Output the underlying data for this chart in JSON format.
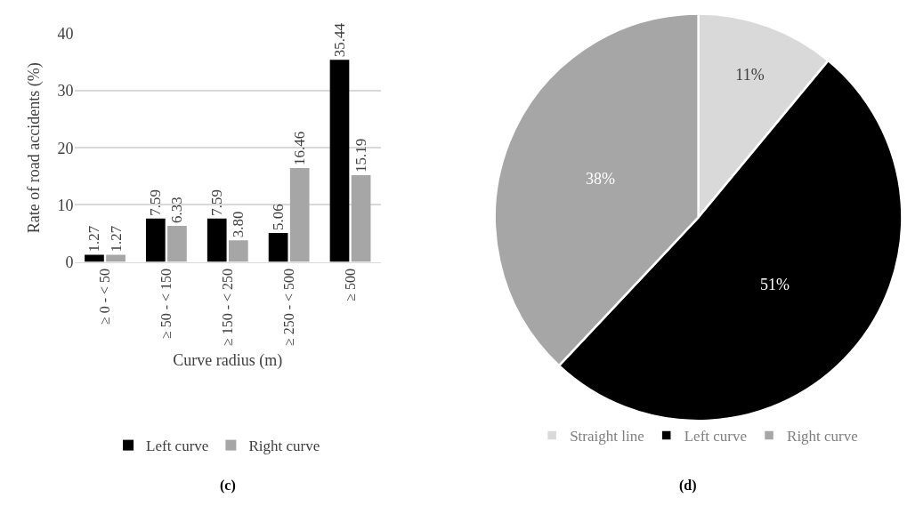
{
  "chart_data": [
    {
      "type": "bar",
      "xlabel": "Curve radius (m)",
      "ylabel": "Rate of road accidents (%)",
      "annotations": [
        "(c)"
      ],
      "categories": [
        "≥ 0 - < 50",
        "≥ 50 - < 150",
        "≥ 150 - < 250",
        "≥ 250 - < 500",
        "≥ 500"
      ],
      "series": [
        {
          "name": "Left curve",
          "color": "#000000",
          "values": [
            1.27,
            7.59,
            7.59,
            5.06,
            35.44
          ],
          "value_labels": [
            "1.27",
            "7.59",
            "7.59",
            "5.06",
            "35.44"
          ]
        },
        {
          "name": "Right curve",
          "color": "#a6a6a6",
          "values": [
            1.27,
            6.33,
            3.8,
            16.46,
            15.19
          ],
          "value_labels": [
            "1.27",
            "6.33",
            "3.80",
            "16.46",
            "15.19"
          ]
        }
      ],
      "ylim": [
        0,
        40
      ],
      "yticks": [
        0,
        10,
        20,
        30,
        40
      ],
      "grid": "y",
      "legend": "bottom"
    },
    {
      "type": "pie",
      "annotations": [
        "(d)"
      ],
      "categories": [
        "Straight line",
        "Left curve",
        "Right curve"
      ],
      "values": [
        11,
        51,
        38
      ],
      "colors": [
        "#d9d9d9",
        "#000000",
        "#a6a6a6"
      ],
      "value_labels": [
        "11%",
        "51%",
        "38%"
      ],
      "legend": "bottom"
    }
  ]
}
